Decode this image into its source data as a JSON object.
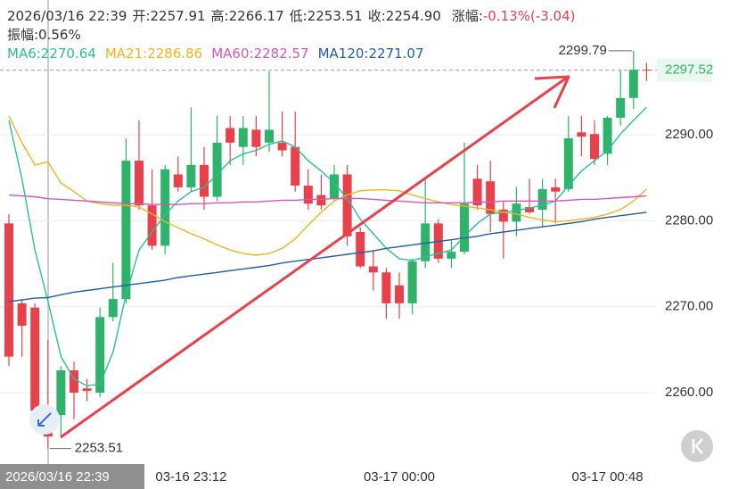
{
  "chart_data": {
    "type": "candlestick",
    "info": [
      "开:2257.91",
      "高:2266.17",
      "低:2253.51",
      "收:2254.90"
    ],
    "change_label": "涨幅:",
    "change": "-0.13%(-3.04)",
    "amplitude": "振幅:0.56%",
    "categories": [
      null,
      null,
      null,
      "2026/03/16 22:39",
      null,
      null,
      null,
      null,
      null,
      null,
      null,
      null,
      null,
      null,
      "03-16 23:12",
      null,
      null,
      null,
      null,
      null,
      null,
      null,
      null,
      null,
      null,
      null,
      null,
      null,
      null,
      null,
      "03-17 00:00",
      null,
      null,
      null,
      null,
      null,
      null,
      null,
      null,
      null,
      null,
      null,
      null,
      null,
      null,
      null,
      "03-17 00:48",
      null,
      null,
      null
    ],
    "open": [
      2279.7,
      2270.4,
      2269.9,
      2257.91,
      2257.4,
      2262.6,
      2260.5,
      2260.0,
      2268.8,
      2270.9,
      2287.0,
      2281.8,
      2277.1,
      2285.4,
      2283.9,
      2286.5,
      2282.8,
      2290.8,
      2288.6,
      2290.6,
      2289.1,
      2289.1,
      2288.6,
      2284.1,
      2283.0,
      2282.6,
      2285.4,
      2278.7,
      2274.7,
      2274.0,
      2272.5,
      2270.4,
      2275.3,
      2279.7,
      2275.6,
      2276.4,
      2284.9,
      2284.6,
      2281.3,
      2279.9,
      2281.6,
      2281.3,
      2283.9,
      2283.7,
      2290.3,
      2290.1,
      2287.8,
      2292.0,
      2294.3,
      2297.6
    ],
    "high": [
      2280.8,
      2270.9,
      2270.4,
      2266.17,
      2263.1,
      2263.6,
      2261.6,
      2269.9,
      2275.1,
      2289.6,
      2291.7,
      2286.0,
      2286.5,
      2287.5,
      2293.2,
      2288.6,
      2292.2,
      2292.2,
      2292.2,
      2292.2,
      2297.4,
      2292.7,
      2292.7,
      2286.0,
      2285.4,
      2286.5,
      2286.5,
      2279.2,
      2276.6,
      2274.5,
      2274.0,
      2275.6,
      2284.9,
      2280.2,
      2277.7,
      2289.1,
      2286.5,
      2287.0,
      2282.3,
      2283.9,
      2284.9,
      2284.9,
      2284.9,
      2292.2,
      2292.2,
      2291.7,
      2292.2,
      2297.6,
      2299.79,
      2298.4
    ],
    "low": [
      2263.1,
      2264.2,
      2257.4,
      2253.51,
      2254.8,
      2256.9,
      2259.0,
      2259.5,
      2268.3,
      2270.4,
      2281.3,
      2276.6,
      2276.1,
      2283.4,
      2283.4,
      2281.3,
      2282.3,
      2286.5,
      2286.5,
      2287.5,
      2288.0,
      2287.5,
      2283.4,
      2281.3,
      2281.3,
      2282.3,
      2277.1,
      2274.5,
      2271.9,
      2268.6,
      2268.6,
      2269.1,
      2274.5,
      2275.1,
      2274.5,
      2276.1,
      2281.3,
      2278.7,
      2275.6,
      2278.2,
      2280.8,
      2279.2,
      2279.7,
      2283.4,
      2287.5,
      2286.5,
      2286.5,
      2291.1,
      2293.0,
      2296.3
    ],
    "close": [
      2264.2,
      2267.8,
      2257.9,
      2254.9,
      2262.6,
      2260.0,
      2260.2,
      2268.8,
      2270.9,
      2287.0,
      2281.8,
      2277.1,
      2286.0,
      2283.9,
      2286.5,
      2282.8,
      2289.1,
      2289.1,
      2290.8,
      2288.6,
      2290.6,
      2288.2,
      2284.1,
      2282.0,
      2281.8,
      2285.4,
      2278.2,
      2274.7,
      2274.0,
      2270.4,
      2270.4,
      2275.3,
      2279.7,
      2275.6,
      2276.4,
      2282.0,
      2281.8,
      2280.8,
      2279.9,
      2282.0,
      2281.0,
      2283.7,
      2283.4,
      2289.6,
      2289.8,
      2287.2,
      2292.0,
      2294.3,
      2297.6,
      2297.52
    ],
    "up_color": "#2fb36a",
    "down_color": "#e8414b",
    "series": [
      {
        "name": "MA6",
        "label": "MA6:2270.64",
        "color": "#2bbf9a",
        "values": [
          2291.7,
          2284.9,
          2276.6,
          2270.64,
          2264.2,
          2261.6,
          2260.8,
          2261.0,
          2264.7,
          2271.4,
          2276.6,
          2278.7,
          2280.7,
          2282.3,
          2283.4,
          2283.9,
          2285.4,
          2287.0,
          2287.8,
          2288.2,
          2288.9,
          2289.3,
          2288.6,
          2287.0,
          2285.8,
          2284.4,
          2282.6,
          2280.2,
          2278.5,
          2276.8,
          2275.6,
          2275.4,
          2275.8,
          2276.2,
          2276.6,
          2278.2,
          2279.7,
          2280.8,
          2281.0,
          2281.2,
          2281.5,
          2281.8,
          2282.3,
          2284.1,
          2285.8,
          2287.0,
          2288.2,
          2290.1,
          2291.7,
          2293.2
        ]
      },
      {
        "name": "MA21",
        "label": "MA21:2286.86",
        "color": "#f0b41e",
        "values": [
          2292.2,
          2289.1,
          2286.5,
          2286.86,
          2284.4,
          2283.4,
          2282.3,
          2282.0,
          2281.8,
          2281.8,
          2281.6,
          2280.8,
          2279.9,
          2279.2,
          2278.5,
          2277.9,
          2277.2,
          2276.6,
          2276.2,
          2276.0,
          2276.2,
          2276.8,
          2277.9,
          2279.5,
          2281.0,
          2282.3,
          2283.0,
          2283.5,
          2283.6,
          2283.6,
          2283.5,
          2283.0,
          2282.6,
          2282.2,
          2281.9,
          2281.7,
          2281.5,
          2281.3,
          2281.0,
          2280.8,
          2280.4,
          2280.1,
          2279.9,
          2280.0,
          2280.2,
          2280.4,
          2280.8,
          2281.3,
          2282.3,
          2283.7
        ]
      },
      {
        "name": "MA60",
        "label": "MA60:2282.57",
        "color": "#d257c0",
        "values": [
          2283.0,
          2282.9,
          2282.8,
          2282.57,
          2282.5,
          2282.4,
          2282.3,
          2282.2,
          2282.1,
          2282.0,
          2282.0,
          2281.9,
          2281.9,
          2281.9,
          2282.0,
          2282.0,
          2282.1,
          2282.1,
          2282.2,
          2282.2,
          2282.3,
          2282.4,
          2282.4,
          2282.5,
          2282.5,
          2282.6,
          2282.6,
          2282.6,
          2282.5,
          2282.4,
          2282.3,
          2282.2,
          2282.1,
          2282.1,
          2282.1,
          2282.1,
          2282.2,
          2282.2,
          2282.3,
          2282.3,
          2282.3,
          2282.3,
          2282.3,
          2282.4,
          2282.5,
          2282.5,
          2282.6,
          2282.7,
          2282.8,
          2282.9
        ]
      },
      {
        "name": "MA120",
        "label": "MA120:2271.07",
        "color": "#1f5fa8",
        "values": [
          2270.6,
          2270.8,
          2271.0,
          2271.07,
          2271.4,
          2271.7,
          2271.9,
          2272.1,
          2272.3,
          2272.5,
          2272.7,
          2272.9,
          2273.1,
          2273.4,
          2273.6,
          2273.8,
          2274.0,
          2274.2,
          2274.4,
          2274.6,
          2274.8,
          2275.1,
          2275.3,
          2275.5,
          2275.7,
          2275.9,
          2276.1,
          2276.3,
          2276.5,
          2276.8,
          2277.0,
          2277.2,
          2277.4,
          2277.6,
          2277.8,
          2278.0,
          2278.2,
          2278.5,
          2278.7,
          2278.9,
          2279.1,
          2279.3,
          2279.5,
          2279.7,
          2279.9,
          2280.2,
          2280.4,
          2280.6,
          2280.8,
          2281.0
        ]
      }
    ],
    "ylim": [
      2251.7,
      2305.7
    ],
    "yticks": [
      {
        "value": 2260,
        "label": "2260.00"
      },
      {
        "value": 2270,
        "label": "2270.00"
      },
      {
        "value": 2280,
        "label": "2280.00"
      },
      {
        "value": 2290,
        "label": "2290.00"
      }
    ],
    "grid": true
  }
}
